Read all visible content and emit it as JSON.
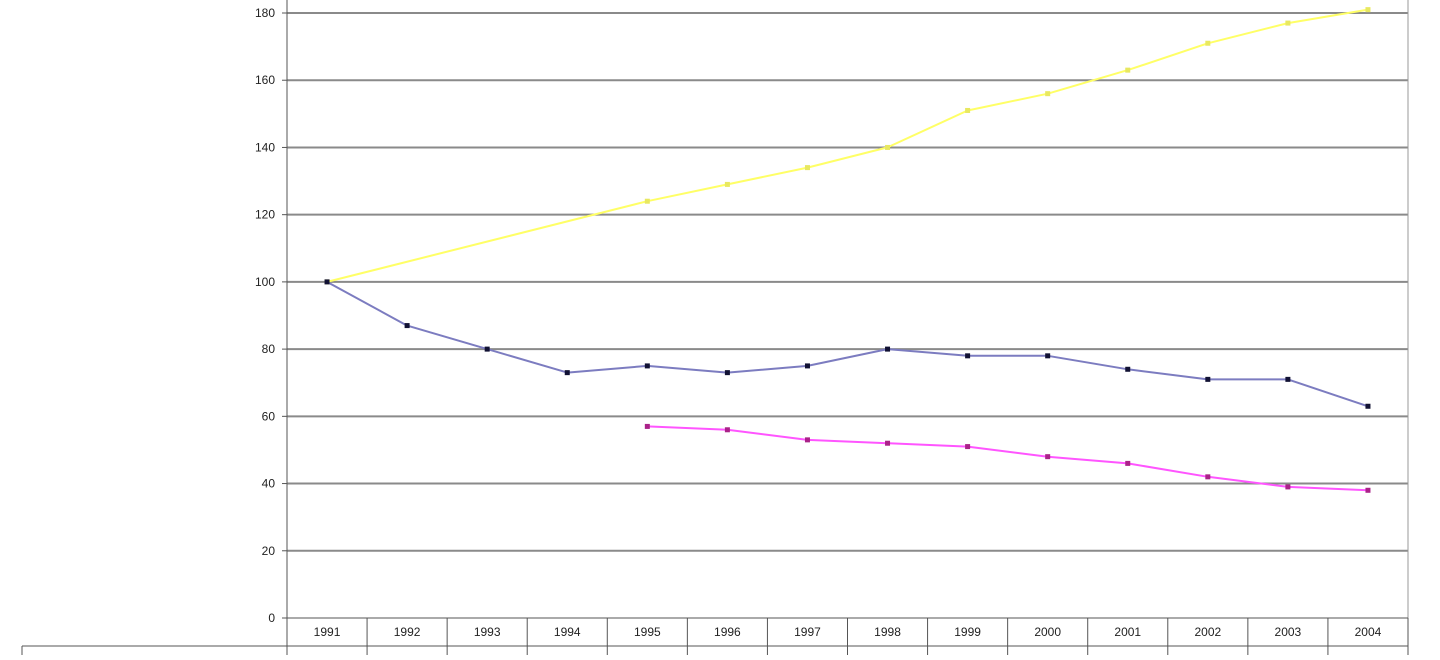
{
  "chart_data": {
    "type": "line",
    "categories": [
      "1991",
      "1992",
      "1993",
      "1994",
      "1995",
      "1996",
      "1997",
      "1998",
      "1999",
      "2000",
      "2001",
      "2002",
      "2003",
      "2004"
    ],
    "ylim": [
      0,
      180
    ],
    "yticks": [
      0,
      20,
      40,
      60,
      80,
      100,
      120,
      140,
      160,
      180
    ],
    "ytick_labels": [
      "0",
      "20",
      "40",
      "60",
      "80",
      "100",
      "120",
      "140",
      "160",
      "180"
    ],
    "grid": true,
    "legend": "none",
    "series": [
      {
        "color": "#ffff66",
        "marker_color": "#e8e860",
        "values": [
          100,
          null,
          null,
          null,
          124,
          129,
          134,
          140,
          151,
          156,
          163,
          171,
          177,
          181
        ]
      },
      {
        "color": "#7c7cc0",
        "marker_color": "#111133",
        "values": [
          100,
          87,
          80,
          73,
          75,
          73,
          75,
          80,
          78,
          78,
          74,
          71,
          71,
          63
        ]
      },
      {
        "color": "#ff55ff",
        "marker_color": "#aa2288",
        "values": [
          null,
          null,
          null,
          null,
          57,
          56,
          53,
          52,
          51,
          48,
          46,
          42,
          39,
          38
        ]
      }
    ]
  }
}
